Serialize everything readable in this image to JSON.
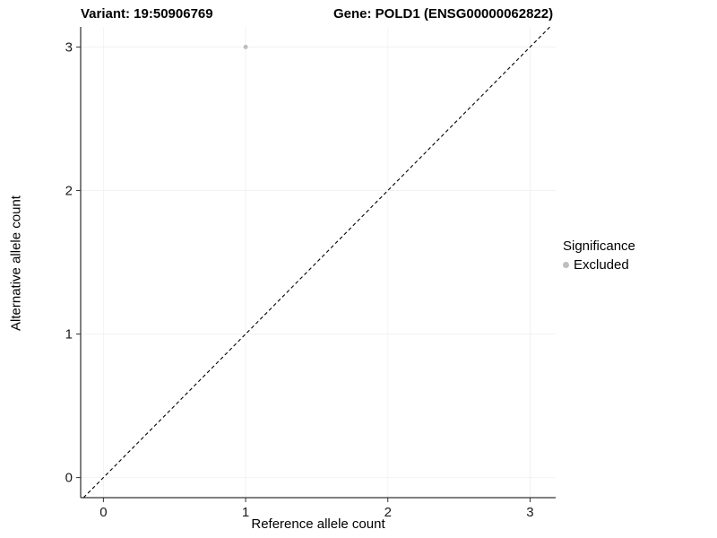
{
  "chart_data": {
    "type": "scatter",
    "title_left": "Variant: 19:50906769",
    "title_right": "Gene: POLD1 (ENSG00000062822)",
    "xlabel": "Reference allele count",
    "ylabel": "Alternative allele count",
    "xlim": [
      -0.16,
      3.18
    ],
    "ylim": [
      -0.14,
      3.14
    ],
    "xticks": [
      0,
      1,
      2,
      3
    ],
    "yticks": [
      0,
      1,
      2,
      3
    ],
    "grid": true,
    "grid_color": "#f2f2f2",
    "axis_color": "#000000",
    "tick_label_color": "#1a1a1a",
    "point_color": "#bebebe",
    "point_radius": 2.5,
    "points": [
      {
        "x": 1,
        "y": 3,
        "series": "Excluded"
      }
    ],
    "identity_line": {
      "style": "dashed",
      "color": "#000000",
      "from": "y=x"
    },
    "legend": {
      "title": "Significance",
      "position": "right",
      "items": [
        {
          "label": "Excluded",
          "color": "#bebebe"
        }
      ]
    }
  }
}
